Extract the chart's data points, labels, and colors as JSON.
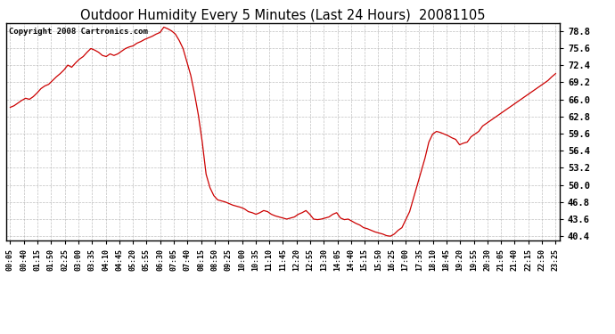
{
  "title": "Outdoor Humidity Every 5 Minutes (Last 24 Hours)  20081105",
  "copyright": "Copyright 2008 Cartronics.com",
  "line_color": "#cc0000",
  "bg_color": "#ffffff",
  "grid_color": "#b0b0b0",
  "yticks": [
    40.4,
    43.6,
    46.8,
    50.0,
    53.2,
    56.4,
    59.6,
    62.8,
    66.0,
    69.2,
    72.4,
    75.6,
    78.8
  ],
  "ylim": [
    39.6,
    80.2
  ],
  "xtick_labels": [
    "00:05",
    "00:40",
    "01:15",
    "01:50",
    "02:25",
    "03:00",
    "03:35",
    "04:10",
    "04:45",
    "05:20",
    "05:55",
    "06:30",
    "07:05",
    "07:40",
    "08:15",
    "08:50",
    "09:25",
    "10:00",
    "10:35",
    "11:10",
    "11:45",
    "12:20",
    "12:55",
    "13:30",
    "14:05",
    "14:40",
    "15:15",
    "15:50",
    "16:25",
    "17:00",
    "17:35",
    "18:10",
    "18:45",
    "19:20",
    "19:55",
    "20:30",
    "21:05",
    "21:40",
    "22:15",
    "22:50",
    "23:25"
  ],
  "humidity_values": [
    64.5,
    64.8,
    65.3,
    65.8,
    66.2,
    66.0,
    66.5,
    67.2,
    68.0,
    68.5,
    68.8,
    69.5,
    70.2,
    70.8,
    71.5,
    72.4,
    72.0,
    72.8,
    73.5,
    74.0,
    74.8,
    75.5,
    75.2,
    74.8,
    74.2,
    74.0,
    74.5,
    74.2,
    74.5,
    75.0,
    75.5,
    75.8,
    76.0,
    76.5,
    76.8,
    77.2,
    77.5,
    77.8,
    78.2,
    78.5,
    79.5,
    79.2,
    78.8,
    78.2,
    77.0,
    75.5,
    73.0,
    70.5,
    67.0,
    63.0,
    58.0,
    52.0,
    49.5,
    48.0,
    47.2,
    47.0,
    46.8,
    46.5,
    46.2,
    46.0,
    45.8,
    45.5,
    45.0,
    44.8,
    44.5,
    44.8,
    45.2,
    45.0,
    44.5,
    44.2,
    44.0,
    43.8,
    43.6,
    43.8,
    44.0,
    44.5,
    44.8,
    45.2,
    44.5,
    43.6,
    43.5,
    43.6,
    43.8,
    44.0,
    44.5,
    44.8,
    43.8,
    43.5,
    43.6,
    43.2,
    42.8,
    42.5,
    42.0,
    41.8,
    41.5,
    41.2,
    41.0,
    40.8,
    40.5,
    40.4,
    40.8,
    41.5,
    42.0,
    43.5,
    45.0,
    47.5,
    50.0,
    52.5,
    55.0,
    58.0,
    59.5,
    60.0,
    59.8,
    59.5,
    59.2,
    58.8,
    58.5,
    57.5,
    57.8,
    58.0,
    59.0,
    59.5,
    60.0,
    61.0,
    61.5,
    62.0,
    62.5,
    63.0,
    63.5,
    64.0,
    64.5,
    65.0,
    65.5,
    66.0,
    66.5,
    67.0,
    67.5,
    68.0,
    68.5,
    69.0,
    69.5,
    70.2,
    70.8
  ]
}
